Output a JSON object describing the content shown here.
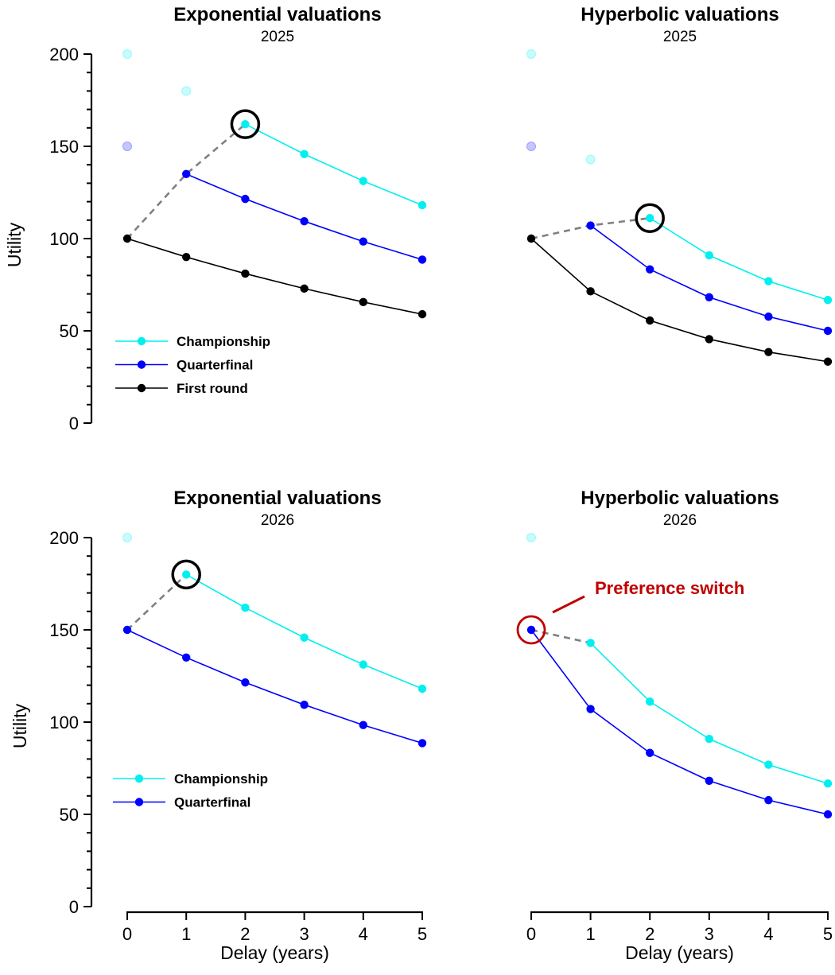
{
  "colors": {
    "championship": "#00f0f0",
    "quarterfinal": "#0000ff",
    "first_round": "#000000",
    "dashed": "#808080",
    "annotation": "#c00000"
  },
  "chart_data": [
    {
      "id": "exp2025",
      "type": "line",
      "title": "Exponential valuations",
      "subtitle": "2025",
      "xlabel": "",
      "ylabel": "Utility",
      "xlim": [
        0,
        5
      ],
      "ylim": [
        0,
        200
      ],
      "yticks": [
        "0",
        "50",
        "100",
        "150",
        "200"
      ],
      "xticks": [],
      "series": [
        {
          "name": "Championship",
          "key": "championship",
          "x": [
            2,
            3,
            4,
            5
          ],
          "values": [
            162,
            145.8,
            131.2,
            118.1
          ],
          "faded": {
            "x": [
              0,
              1
            ],
            "values": [
              200,
              180
            ]
          }
        },
        {
          "name": "Quarterfinal",
          "key": "quarterfinal",
          "x": [
            1,
            2,
            3,
            4,
            5
          ],
          "values": [
            135,
            121.5,
            109.4,
            98.4,
            88.6
          ],
          "faded": {
            "x": [
              0
            ],
            "values": [
              150
            ]
          }
        },
        {
          "name": "First round",
          "key": "first_round",
          "x": [
            0,
            1,
            2,
            3,
            4,
            5
          ],
          "values": [
            100,
            90,
            81,
            72.9,
            65.6,
            59
          ]
        }
      ],
      "choice_path": {
        "x": [
          0,
          1,
          2
        ],
        "values": [
          100,
          135,
          162
        ]
      },
      "chosen": {
        "x": 2,
        "value": 162
      },
      "legend": [
        "Championship",
        "Quarterfinal",
        "First round"
      ],
      "legend_placement": "lower-left"
    },
    {
      "id": "hyp2025",
      "type": "line",
      "title": "Hyperbolic valuations",
      "subtitle": "2025",
      "xlabel": "",
      "ylabel": "",
      "xlim": [
        0,
        5
      ],
      "ylim": [
        0,
        200
      ],
      "yticks": [],
      "xticks": [],
      "series": [
        {
          "name": "Championship",
          "key": "championship",
          "x": [
            2,
            3,
            4,
            5
          ],
          "values": [
            111.1,
            90.9,
            76.9,
            66.7
          ],
          "faded": {
            "x": [
              0,
              1
            ],
            "values": [
              200,
              142.9
            ]
          }
        },
        {
          "name": "Quarterfinal",
          "key": "quarterfinal",
          "x": [
            1,
            2,
            3,
            4,
            5
          ],
          "values": [
            107.1,
            83.3,
            68.2,
            57.7,
            50
          ],
          "faded": {
            "x": [
              0
            ],
            "values": [
              150
            ]
          }
        },
        {
          "name": "First round",
          "key": "first_round",
          "x": [
            0,
            1,
            2,
            3,
            4,
            5
          ],
          "values": [
            100,
            71.4,
            55.6,
            45.5,
            38.5,
            33.3
          ]
        }
      ],
      "choice_path": {
        "x": [
          0,
          1,
          2
        ],
        "values": [
          100,
          107.1,
          111.1
        ]
      },
      "chosen": {
        "x": 2,
        "value": 111.1
      }
    },
    {
      "id": "exp2026",
      "type": "line",
      "title": "Exponential valuations",
      "subtitle": "2026",
      "xlabel": "Delay (years)",
      "ylabel": "Utility",
      "xlim": [
        0,
        5
      ],
      "ylim": [
        0,
        200
      ],
      "yticks": [
        "0",
        "50",
        "100",
        "150",
        "200"
      ],
      "xticks": [
        "0",
        "1",
        "2",
        "3",
        "4",
        "5"
      ],
      "series": [
        {
          "name": "Championship",
          "key": "championship",
          "x": [
            1,
            2,
            3,
            4,
            5
          ],
          "values": [
            180,
            162,
            145.8,
            131.2,
            118.1
          ],
          "faded": {
            "x": [
              0
            ],
            "values": [
              200
            ]
          }
        },
        {
          "name": "Quarterfinal",
          "key": "quarterfinal",
          "x": [
            0,
            1,
            2,
            3,
            4,
            5
          ],
          "values": [
            150,
            135,
            121.5,
            109.4,
            98.4,
            88.6
          ]
        }
      ],
      "choice_path": {
        "x": [
          0,
          1
        ],
        "values": [
          150,
          180
        ]
      },
      "chosen": {
        "x": 1,
        "value": 180
      },
      "legend": [
        "Championship",
        "Quarterfinal"
      ],
      "legend_placement": "lower-left"
    },
    {
      "id": "hyp2026",
      "type": "line",
      "title": "Hyperbolic valuations",
      "subtitle": "2026",
      "xlabel": "Delay (years)",
      "ylabel": "",
      "xlim": [
        0,
        5
      ],
      "ylim": [
        0,
        200
      ],
      "yticks": [],
      "xticks": [
        "0",
        "1",
        "2",
        "3",
        "4",
        "5"
      ],
      "series": [
        {
          "name": "Championship",
          "key": "championship",
          "x": [
            1,
            2,
            3,
            4,
            5
          ],
          "values": [
            142.9,
            111.1,
            90.9,
            76.9,
            66.7
          ],
          "faded": {
            "x": [
              0
            ],
            "values": [
              200
            ]
          }
        },
        {
          "name": "Quarterfinal",
          "key": "quarterfinal",
          "x": [
            0,
            1,
            2,
            3,
            4,
            5
          ],
          "values": [
            150,
            107.1,
            83.3,
            68.2,
            57.7,
            50
          ]
        }
      ],
      "choice_path": {
        "x": [
          0,
          1
        ],
        "values": [
          150,
          142.9
        ]
      },
      "chosen": {
        "x": 0,
        "value": 150,
        "highlight": "annotation"
      },
      "annotation": "Preference switch"
    }
  ]
}
